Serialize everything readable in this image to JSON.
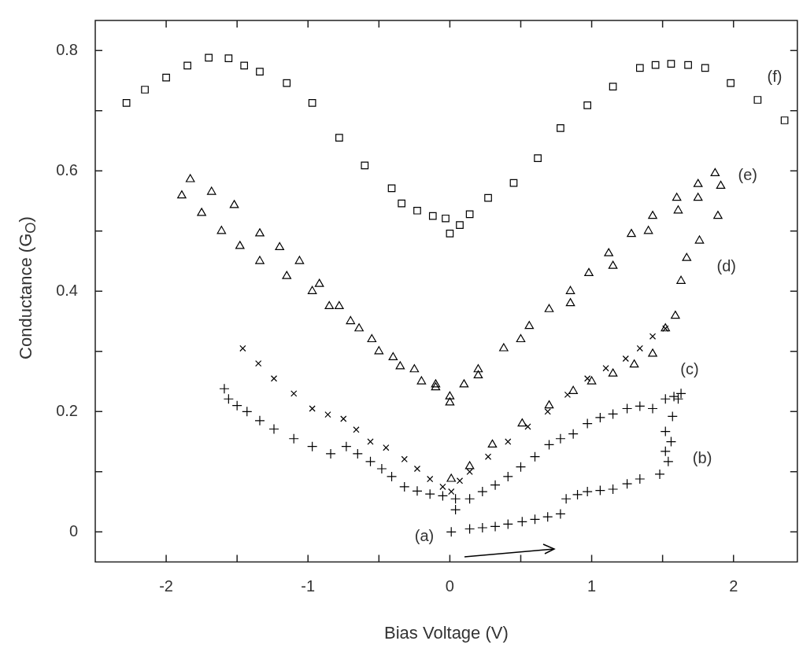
{
  "chart_data": {
    "type": "scatter",
    "xlabel": "Bias Voltage (V)",
    "ylabel": "Conductance (G$_{O}$)",
    "xlim": [
      -2.5,
      2.45
    ],
    "ylim": [
      -0.05,
      0.85
    ],
    "xticks": [
      -2,
      {
        "value": -1.5,
        "label": null
      },
      -1,
      {
        "value": -0.5,
        "label": null
      },
      0,
      {
        "value": 0.5,
        "label": null
      },
      1,
      {
        "value": 1.5,
        "label": null
      },
      2
    ],
    "yticks": [
      0,
      {
        "value": 0.1,
        "label": null
      },
      0.2,
      {
        "value": 0.3,
        "label": null
      },
      0.4,
      {
        "value": 0.5,
        "label": null
      },
      0.6,
      {
        "value": 0.7,
        "label": null
      },
      0.8
    ],
    "grid": false,
    "legend": false,
    "series": [
      {
        "color": "#000000",
        "marker": "cross",
        "x": [
          0.01,
          0.14,
          0.23,
          0.32,
          0.41,
          0.51,
          0.6,
          0.69,
          0.78,
          0.82,
          0.9,
          0.97,
          1.06,
          1.15,
          1.25,
          1.34,
          1.48,
          1.54,
          1.52,
          1.56,
          1.52,
          1.57,
          1.61
        ],
        "values": [
          0.0,
          0.005,
          0.007,
          0.009,
          0.013,
          0.017,
          0.021,
          0.025,
          0.03,
          0.055,
          0.062,
          0.067,
          0.069,
          0.071,
          0.08,
          0.088,
          0.096,
          0.117,
          0.134,
          0.15,
          0.167,
          0.192,
          0.221
        ]
      },
      {
        "color": "#000000",
        "marker": "cross",
        "x": [
          -1.59,
          -1.56,
          -1.5,
          -1.43,
          -1.34,
          -1.24,
          -1.1,
          -0.97,
          -0.84,
          -0.73,
          -0.65,
          -0.56,
          -0.48,
          -0.41,
          -0.32,
          -0.23,
          -0.14,
          -0.05,
          0.04,
          0.04,
          0.14,
          0.23,
          0.32,
          0.41,
          0.5,
          0.6,
          0.7,
          0.78,
          0.87,
          0.97,
          1.06,
          1.15,
          1.25,
          1.34,
          1.43,
          1.52,
          1.58,
          1.63
        ],
        "values": [
          0.238,
          0.221,
          0.21,
          0.2,
          0.185,
          0.171,
          0.155,
          0.142,
          0.13,
          0.142,
          0.13,
          0.117,
          0.105,
          0.092,
          0.075,
          0.068,
          0.063,
          0.06,
          0.055,
          0.037,
          0.055,
          0.067,
          0.078,
          0.092,
          0.108,
          0.125,
          0.145,
          0.155,
          0.163,
          0.18,
          0.19,
          0.196,
          0.205,
          0.209,
          0.205,
          0.221,
          0.225,
          0.23
        ]
      },
      {
        "color": "#000000",
        "marker": "x",
        "x": [
          -1.46,
          -1.35,
          -1.24,
          -1.1,
          -0.97,
          -0.86,
          -0.75,
          -0.66,
          -0.56,
          -0.45,
          -0.32,
          -0.23,
          -0.14,
          -0.05,
          0.01,
          0.07,
          0.14,
          0.27,
          0.41,
          0.55,
          0.69,
          0.83,
          0.97,
          1.1,
          1.24,
          1.34,
          1.43,
          1.52
        ],
        "values": [
          0.305,
          0.28,
          0.255,
          0.23,
          0.205,
          0.195,
          0.188,
          0.17,
          0.15,
          0.14,
          0.121,
          0.105,
          0.088,
          0.075,
          0.067,
          0.085,
          0.1,
          0.125,
          0.15,
          0.175,
          0.2,
          0.228,
          0.255,
          0.272,
          0.288,
          0.305,
          0.325,
          0.338
        ]
      },
      {
        "color": "#000000",
        "marker": "triangle",
        "x": [
          0.01,
          0.14,
          0.3,
          0.51,
          0.7,
          0.87,
          1.0,
          1.15,
          1.3,
          1.43,
          1.52,
          1.59,
          1.63,
          1.67,
          1.76,
          1.89,
          1.91,
          1.75,
          1.61,
          1.4,
          1.15,
          0.85,
          0.5,
          0.2,
          0.0,
          -0.1,
          -0.25,
          -0.4,
          -0.55,
          -0.7,
          -0.85,
          -0.97,
          -1.15,
          -1.34,
          -1.48,
          -1.61,
          -1.75,
          -1.89
        ],
        "values": [
          0.088,
          0.109,
          0.145,
          0.18,
          0.21,
          0.234,
          0.25,
          0.263,
          0.278,
          0.296,
          0.338,
          0.359,
          0.417,
          0.455,
          0.484,
          0.525,
          0.575,
          0.555,
          0.534,
          0.5,
          0.442,
          0.38,
          0.32,
          0.26,
          0.215,
          0.245,
          0.27,
          0.29,
          0.32,
          0.35,
          0.375,
          0.4,
          0.425,
          0.45,
          0.475,
          0.5,
          0.53,
          0.559
        ]
      },
      {
        "color": "#000000",
        "marker": "triangle",
        "x": [
          -1.83,
          -1.68,
          -1.52,
          -1.34,
          -1.2,
          -1.06,
          -0.92,
          -0.78,
          -0.64,
          -0.5,
          -0.35,
          -0.2,
          -0.1,
          0.0,
          0.1,
          0.2,
          0.38,
          0.56,
          0.7,
          0.85,
          0.98,
          1.12,
          1.28,
          1.43,
          1.6,
          1.75,
          1.87
        ],
        "values": [
          0.586,
          0.565,
          0.543,
          0.496,
          0.473,
          0.45,
          0.412,
          0.375,
          0.338,
          0.3,
          0.275,
          0.25,
          0.24,
          0.225,
          0.245,
          0.27,
          0.305,
          0.342,
          0.37,
          0.4,
          0.43,
          0.463,
          0.495,
          0.525,
          0.555,
          0.578,
          0.596
        ]
      },
      {
        "color": "#000000",
        "marker": "square",
        "x": [
          -2.28,
          -2.15,
          -2.0,
          -1.85,
          -1.7,
          -1.56,
          -1.45,
          -1.34,
          -1.15,
          -0.97,
          -0.78,
          -0.6,
          -0.41,
          -0.34,
          -0.23,
          -0.12,
          -0.03,
          0.0,
          0.07,
          0.14,
          0.27,
          0.45,
          0.62,
          0.78,
          0.97,
          1.15,
          1.34,
          1.45,
          1.56,
          1.68,
          1.8,
          1.98,
          2.17,
          2.36
        ],
        "values": [
          0.713,
          0.735,
          0.755,
          0.775,
          0.788,
          0.787,
          0.775,
          0.765,
          0.746,
          0.713,
          0.655,
          0.609,
          0.571,
          0.546,
          0.534,
          0.525,
          0.521,
          0.496,
          0.51,
          0.528,
          0.555,
          0.58,
          0.621,
          0.671,
          0.709,
          0.74,
          0.771,
          0.776,
          0.778,
          0.776,
          0.771,
          0.746,
          0.718,
          0.684
        ]
      }
    ],
    "annotations": [
      "(a)",
      "(b)",
      "(c)",
      "(d)",
      "(e)",
      "(f)"
    ]
  }
}
